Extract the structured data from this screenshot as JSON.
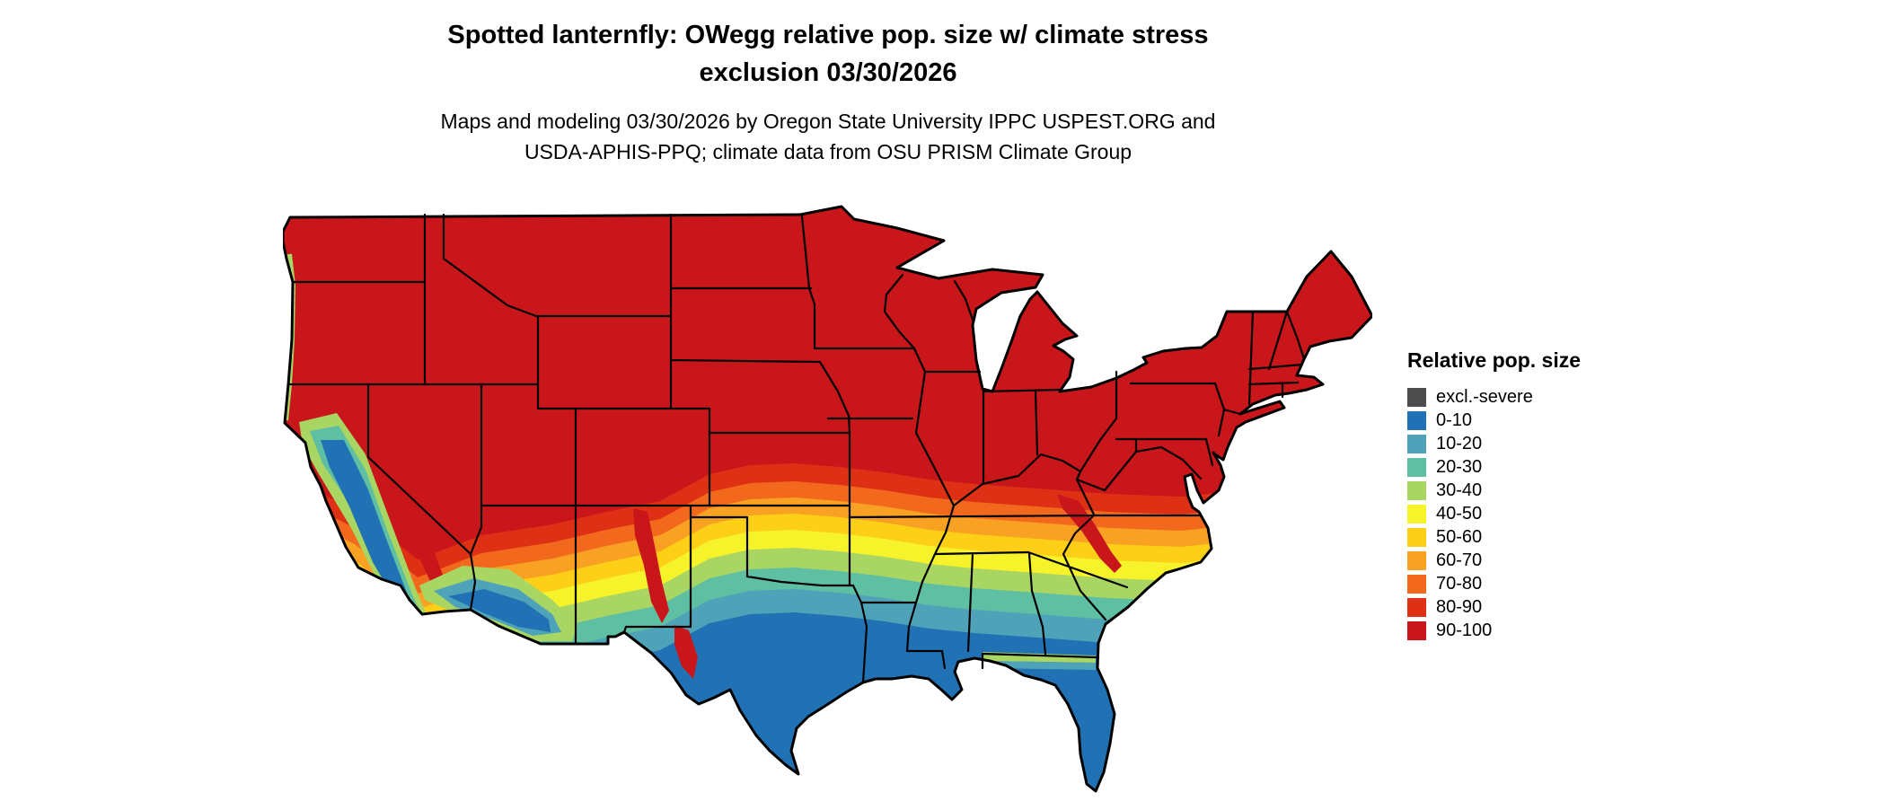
{
  "title": {
    "line1": "Spotted lanternfly: OWegg relative pop. size w/ climate stress",
    "line2": "exclusion 03/30/2026"
  },
  "subtitle": {
    "line1": "Maps and modeling 03/30/2026 by Oregon State University IPPC USPEST.ORG and",
    "line2": "USDA-APHIS-PPQ; climate data from OSU PRISM Climate Group"
  },
  "legend": {
    "title": "Relative pop. size",
    "items": [
      {
        "label": "excl.-severe",
        "color": "#4D4D4D"
      },
      {
        "label": "0-10",
        "color": "#2171B5"
      },
      {
        "label": "10-20",
        "color": "#4FA3B8"
      },
      {
        "label": "20-30",
        "color": "#5FBFA3"
      },
      {
        "label": "30-40",
        "color": "#A9D662"
      },
      {
        "label": "40-50",
        "color": "#F7F32B"
      },
      {
        "label": "50-60",
        "color": "#FDD017"
      },
      {
        "label": "60-70",
        "color": "#F9A122"
      },
      {
        "label": "70-80",
        "color": "#F2691D"
      },
      {
        "label": "80-90",
        "color": "#DE3014"
      },
      {
        "label": "90-100",
        "color": "#C8161B"
      }
    ]
  },
  "map": {
    "region": "contiguous-united-states",
    "border_color": "#000000",
    "water_color": "#FFFFFF",
    "pattern": "high relative pop. size (red) across northern US, banded transition through orange/yellow/green, low (blue) across southern US, California valley and southwest deserts low, Appalachian and NM/Big Bend high tongues"
  }
}
